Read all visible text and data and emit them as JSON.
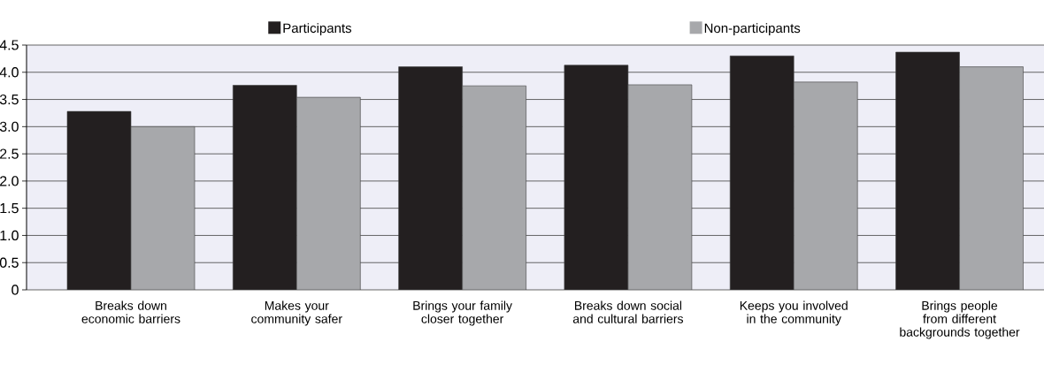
{
  "chart_data": {
    "type": "bar",
    "categories": [
      "Breaks down economic barriers",
      "Makes your community safer",
      "Brings your family closer together",
      "Breaks down social and cultural barriers",
      "Keeps you involved in the community",
      "Brings people from different backgrounds together"
    ],
    "series": [
      {
        "name": "Participants",
        "color": "#231f20",
        "values": [
          3.28,
          3.76,
          4.1,
          4.13,
          4.3,
          4.37
        ]
      },
      {
        "name": "Non-participants",
        "color": "#a7a8ab",
        "values": [
          3.0,
          3.54,
          3.75,
          3.77,
          3.82,
          4.1
        ]
      }
    ],
    "ylim": [
      0,
      4.5
    ],
    "yticks": [
      0,
      {
        "value": 0.5,
        "label": "0.5"
      },
      {
        "value": 1,
        "label": "1.0"
      },
      {
        "value": 1.5,
        "label": "1.5"
      },
      {
        "value": 2,
        "label": "2.0"
      },
      {
        "value": 2.5,
        "label": "2.5"
      },
      {
        "value": 3,
        "label": "3.0"
      },
      {
        "value": 3.5,
        "label": "3.5"
      },
      {
        "value": 4,
        "label": "4.0"
      },
      {
        "value": 4.5,
        "label": "4.5"
      }
    ],
    "grid": "y",
    "legend": "top"
  }
}
